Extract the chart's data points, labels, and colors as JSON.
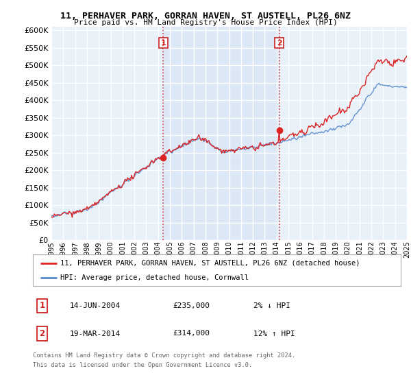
{
  "title1": "11, PERHAVER PARK, GORRAN HAVEN, ST AUSTELL, PL26 6NZ",
  "title2": "Price paid vs. HM Land Registry's House Price Index (HPI)",
  "ytick_values": [
    0,
    50000,
    100000,
    150000,
    200000,
    250000,
    300000,
    350000,
    400000,
    450000,
    500000,
    550000,
    600000
  ],
  "ylim": [
    0,
    610000
  ],
  "hpi_color": "#5588cc",
  "price_color": "#dd2222",
  "vline_color": "#cc2222",
  "grid_color": "#cccccc",
  "bg_color": "#e8f0f8",
  "highlight_color": "#dce8f5",
  "transaction1": {
    "date_num": 2004.45,
    "price": 235000,
    "label": "1",
    "date_str": "14-JUN-2004",
    "change": "2% ↓ HPI"
  },
  "transaction2": {
    "date_num": 2014.22,
    "price": 314000,
    "label": "2",
    "date_str": "19-MAR-2014",
    "change": "12% ↑ HPI"
  },
  "legend_price_label": "11, PERHAVER PARK, GORRAN HAVEN, ST AUSTELL, PL26 6NZ (detached house)",
  "legend_hpi_label": "HPI: Average price, detached house, Cornwall",
  "footer1": "Contains HM Land Registry data © Crown copyright and database right 2024.",
  "footer2": "This data is licensed under the Open Government Licence v3.0.",
  "xmin": 1995,
  "xmax": 2025,
  "seed": 42
}
